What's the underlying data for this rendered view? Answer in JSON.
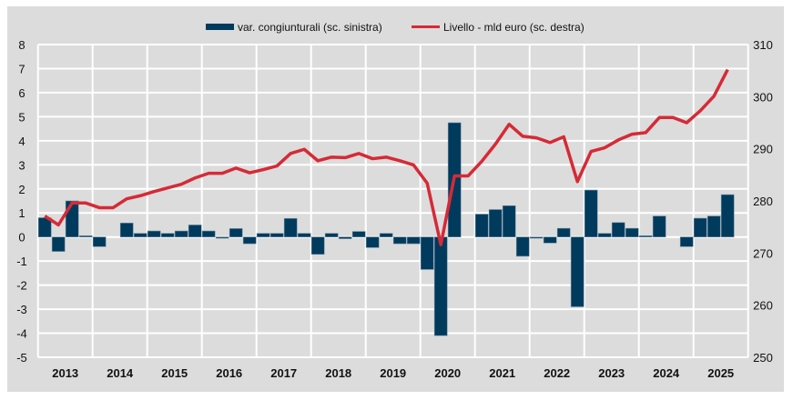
{
  "chart_data": {
    "type": "bar+line",
    "title": "",
    "legend_position": "top",
    "grid": true,
    "x_tick_labels": [
      "2013",
      "2014",
      "2015",
      "2016",
      "2017",
      "2018",
      "2019",
      "2020",
      "2021",
      "2022",
      "2023",
      "2024",
      "2025"
    ],
    "y_left": {
      "ylim": [
        -5,
        8
      ],
      "ticks": [
        -5,
        -4,
        -3,
        -2,
        -1,
        0,
        1,
        2,
        3,
        4,
        5,
        6,
        7,
        8
      ]
    },
    "y_right": {
      "ylim": [
        250,
        310
      ],
      "ticks": [
        250,
        260,
        270,
        280,
        290,
        300,
        310
      ]
    },
    "quarters_start": "2013 Q1",
    "series": [
      {
        "name": "var. congiunturali (sc. sinistra)",
        "type": "bar",
        "axis": "left",
        "color": "#003a5d",
        "values": [
          0.8,
          -0.6,
          1.5,
          0.05,
          -0.4,
          0,
          0.58,
          0.15,
          0.25,
          0.15,
          0.25,
          0.5,
          0.25,
          -0.05,
          0.35,
          -0.28,
          0.15,
          0.15,
          0.77,
          0.15,
          -0.72,
          0.15,
          -0.07,
          0.23,
          -0.44,
          0.15,
          -0.28,
          -0.28,
          -1.35,
          -4.1,
          4.75,
          0,
          0.95,
          1.14,
          1.3,
          -0.8,
          -0.05,
          -0.25,
          0.36,
          -2.9,
          1.95,
          0.15,
          0.6,
          0.36,
          0.05,
          0.87,
          0,
          -0.4,
          0.78,
          0.87,
          1.76
        ]
      },
      {
        "name": "Livello - mld euro (sc. destra)",
        "type": "line",
        "axis": "right",
        "color": "#d62a36",
        "values": [
          277.1,
          275.4,
          279.6,
          279.6,
          278.7,
          278.7,
          280.4,
          281.0,
          281.8,
          282.5,
          283.2,
          284.4,
          285.3,
          285.3,
          286.3,
          285.4,
          286.0,
          286.7,
          289.1,
          289.9,
          287.7,
          288.4,
          288.3,
          289.1,
          288.1,
          288.4,
          287.7,
          286.9,
          283.4,
          271.6,
          284.8,
          284.8,
          287.6,
          290.9,
          294.7,
          292.4,
          292.1,
          291.2,
          292.3,
          283.7,
          289.5,
          290.2,
          291.7,
          292.8,
          293.1,
          296.0,
          296.0,
          295.0,
          297.3,
          300.1,
          305.2
        ]
      }
    ]
  }
}
